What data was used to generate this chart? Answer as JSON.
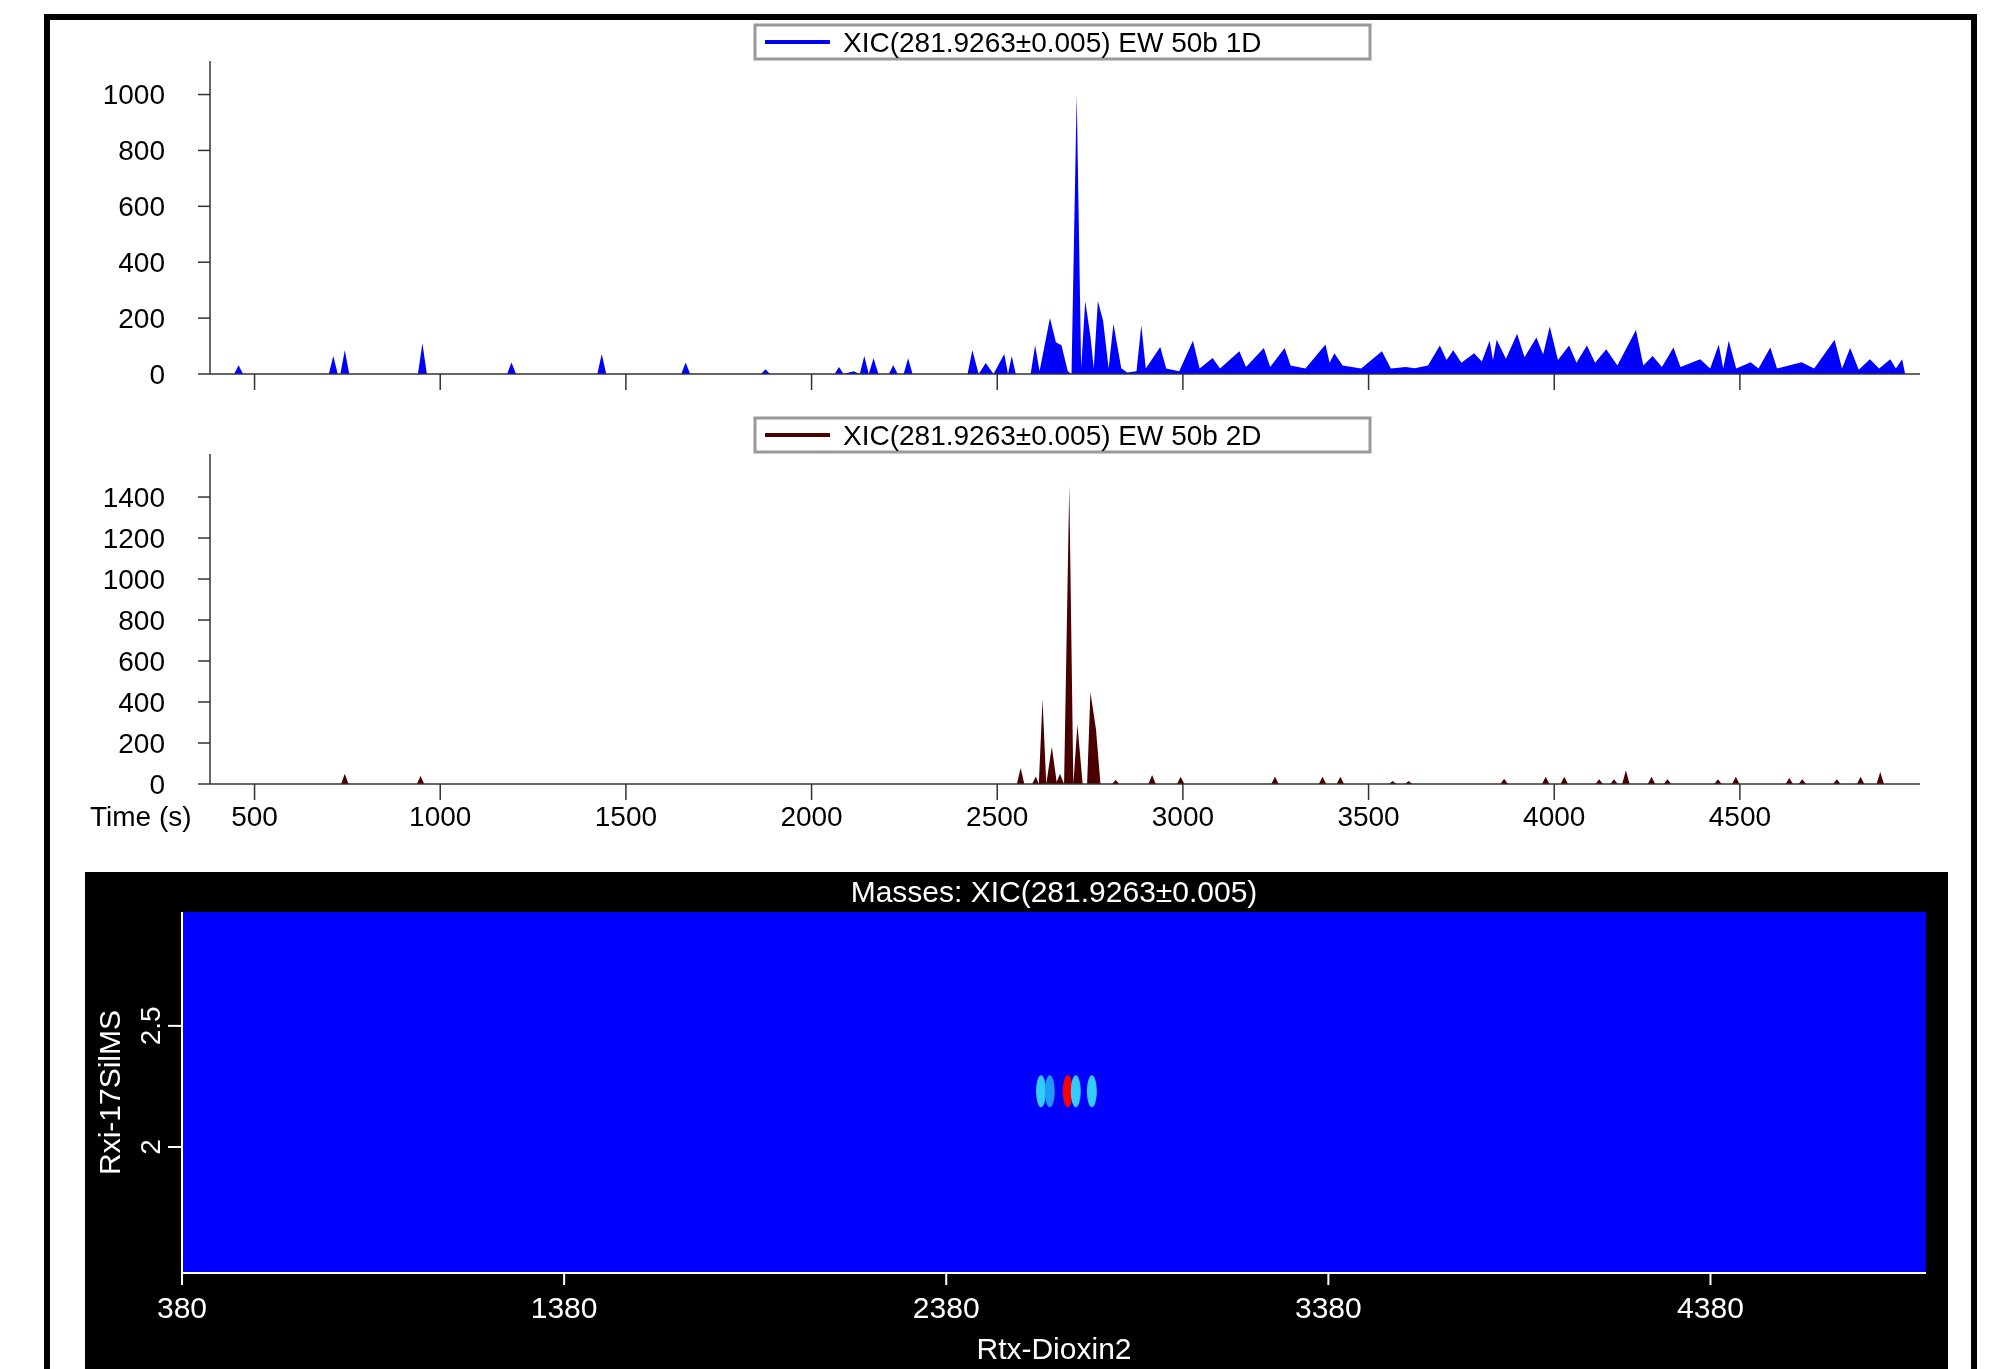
{
  "chart_data": [
    {
      "type": "area",
      "legend": "top",
      "tick_labels": "y",
      "xlim": [
        380,
        4985
      ],
      "xticks": [
        {
          "value": 500,
          "label": null
        },
        {
          "value": 1000,
          "label": null
        },
        {
          "value": 1500,
          "label": null
        },
        {
          "value": 2000,
          "label": null
        },
        {
          "value": 2500,
          "label": null
        },
        {
          "value": 3000,
          "label": null
        },
        {
          "value": 3500,
          "label": null
        },
        {
          "value": 4000,
          "label": null
        },
        {
          "value": 4500,
          "label": null
        }
      ],
      "ylim": [
        0,
        1120
      ],
      "yticks": [
        0,
        200,
        400,
        600,
        800,
        1000
      ],
      "series": [
        {
          "name": "XIC(281.9263±0.005) EW 50b 1D",
          "color": "#0000ff",
          "x": [
            380,
            445,
            457,
            469,
            700,
            712,
            724,
            731,
            743,
            755,
            940,
            952,
            964,
            1180,
            1192,
            1204,
            1423,
            1435,
            1447,
            1649,
            1661,
            1673,
            1864,
            1876,
            1888,
            2062,
            2074,
            2086,
            2113,
            2130,
            2142,
            2154,
            2167,
            2180,
            2208,
            2220,
            2232,
            2248,
            2260,
            2272,
            2420,
            2433,
            2450,
            2469,
            2490,
            2519,
            2529,
            2539,
            2550,
            2590,
            2602,
            2614,
            2642,
            2658,
            2673,
            2690,
            2700,
            2714,
            2726,
            2737,
            2751,
            2760,
            2771,
            2785,
            2800,
            2813,
            2834,
            2850,
            2875,
            2888,
            2900,
            2939,
            2955,
            2990,
            3027,
            3045,
            3080,
            3100,
            3152,
            3170,
            3218,
            3235,
            3274,
            3290,
            3330,
            3384,
            3395,
            3408,
            3430,
            3480,
            3536,
            3560,
            3600,
            3624,
            3660,
            3692,
            3710,
            3728,
            3750,
            3784,
            3805,
            3826,
            3835,
            3845,
            3870,
            3900,
            3920,
            3952,
            3970,
            3988,
            4010,
            4040,
            4060,
            4088,
            4110,
            4140,
            4170,
            4220,
            4240,
            4265,
            4290,
            4321,
            4340,
            4393,
            4420,
            4443,
            4455,
            4470,
            4490,
            4529,
            4550,
            4582,
            4600,
            4666,
            4700,
            4755,
            4775,
            4797,
            4820,
            4850,
            4875,
            4905,
            4920,
            4937,
            4945
          ],
          "values": [
            0,
            0,
            31,
            0,
            0,
            64,
            0,
            0,
            85,
            0,
            0,
            110,
            0,
            0,
            41,
            0,
            0,
            72,
            0,
            0,
            41,
            0,
            0,
            17,
            0,
            0,
            25,
            0,
            10,
            0,
            64,
            0,
            56,
            0,
            0,
            31,
            0,
            0,
            56,
            0,
            0,
            85,
            0,
            39,
            0,
            72,
            0,
            64,
            0,
            0,
            103,
            10,
            200,
            114,
            103,
            10,
            0,
            1000,
            20,
            261,
            135,
            20,
            261,
            191,
            20,
            180,
            21,
            5,
            10,
            174,
            20,
            97,
            20,
            10,
            119,
            20,
            57,
            20,
            81,
            25,
            93,
            25,
            93,
            30,
            20,
            106,
            40,
            74,
            30,
            20,
            81,
            20,
            25,
            21,
            30,
            102,
            50,
            85,
            40,
            74,
            45,
            119,
            50,
            123,
            55,
            144,
            60,
            131,
            70,
            170,
            50,
            102,
            40,
            102,
            40,
            89,
            30,
            157,
            30,
            64,
            25,
            95,
            25,
            53,
            20,
            106,
            20,
            119,
            20,
            42,
            20,
            95,
            20,
            42,
            20,
            123,
            20,
            93,
            15,
            53,
            20,
            53,
            20,
            53,
            0
          ]
        }
      ]
    },
    {
      "type": "area",
      "legend": "top",
      "xlabel": "Time (s)",
      "xlim": [
        380,
        4985
      ],
      "xticks": [
        500,
        1000,
        1500,
        2000,
        2500,
        3000,
        3500,
        4000,
        4500
      ],
      "ylim": [
        0,
        1610
      ],
      "yticks": [
        0,
        200,
        400,
        600,
        800,
        1000,
        1200,
        1400
      ],
      "series": [
        {
          "name": "XIC(281.9263±0.005) EW 50b 2D",
          "color": "#4a0000",
          "x": [
            380,
            733,
            743,
            753,
            937,
            947,
            957,
            2553,
            2563,
            2573,
            2594,
            2604,
            2612,
            2622,
            2632,
            2647,
            2660,
            2669,
            2680,
            2694,
            2705,
            2716,
            2730,
            2742,
            2751,
            2766,
            2778,
            2809,
            2819,
            2829,
            2907,
            2917,
            2927,
            2984,
            2994,
            3004,
            3238,
            3248,
            3258,
            3366,
            3376,
            3386,
            3414,
            3424,
            3434,
            3555,
            3565,
            3575,
            3598,
            3608,
            3618,
            3855,
            3865,
            3875,
            3967,
            3977,
            3987,
            4017,
            4027,
            4037,
            4111,
            4121,
            4131,
            4151,
            4161,
            4171,
            4183,
            4193,
            4203,
            4252,
            4262,
            4272,
            4295,
            4305,
            4315,
            4431,
            4441,
            4451,
            4479,
            4489,
            4499,
            4623,
            4633,
            4643,
            4658,
            4668,
            4678,
            4751,
            4761,
            4771,
            4815,
            4825,
            4835,
            4868,
            4878,
            4888,
            4945
          ],
          "values": [
            0,
            0,
            50,
            0,
            0,
            39,
            0,
            0,
            78,
            0,
            0,
            36,
            0,
            414,
            0,
            182,
            10,
            50,
            0,
            1456,
            0,
            290,
            0,
            0,
            448,
            266,
            0,
            0,
            20,
            0,
            0,
            44,
            0,
            0,
            35,
            0,
            0,
            35,
            0,
            0,
            35,
            0,
            0,
            35,
            0,
            0,
            15,
            0,
            0,
            15,
            0,
            0,
            26,
            0,
            0,
            35,
            0,
            0,
            35,
            0,
            0,
            23,
            0,
            0,
            23,
            0,
            0,
            67,
            0,
            0,
            35,
            0,
            0,
            23,
            0,
            0,
            23,
            0,
            0,
            35,
            0,
            0,
            29,
            0,
            0,
            23,
            0,
            0,
            23,
            0,
            0,
            35,
            0,
            0,
            58,
            0,
            0
          ]
        }
      ]
    },
    {
      "type": "scatter",
      "title": "Masses:  XIC(281.9263±0.005)",
      "xlabel": "Rtx-Dioxin2",
      "ylabel": "Rxi-17SilMS",
      "xlim": [
        380,
        4944
      ],
      "xticks": [
        380,
        1380,
        2380,
        3380,
        4380
      ],
      "ylim": [
        1.48,
        2.97
      ],
      "yticks": [
        2,
        2.5
      ],
      "series": [
        {
          "x": [
            2628,
            2651,
            2698,
            2719,
            2761
          ],
          "values": [
            2.23,
            2.23,
            2.23,
            2.23,
            2.23
          ],
          "colors": [
            "#33ccff",
            "#2299ff",
            "#ff0000",
            "#33ccff",
            "#33ccff"
          ]
        }
      ]
    }
  ]
}
